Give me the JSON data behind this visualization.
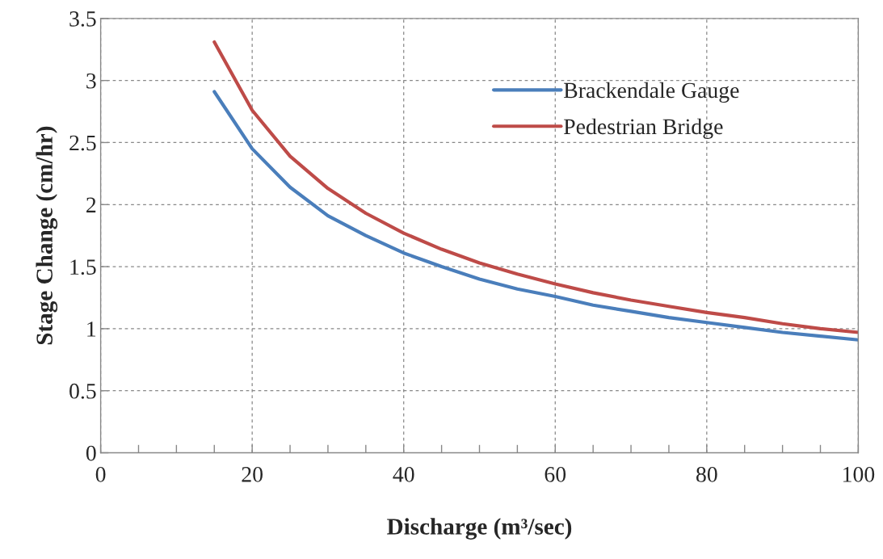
{
  "chart_data": {
    "type": "line",
    "xlabel": "Discharge (m³/sec)",
    "ylabel": "Stage Change (cm/hr)",
    "x": [
      15,
      20,
      25,
      30,
      35,
      40,
      45,
      50,
      55,
      60,
      65,
      70,
      75,
      80,
      85,
      90,
      95,
      100
    ],
    "series": [
      {
        "name": "Brackendale Gauge",
        "color": "#4a7ebb",
        "values": [
          2.91,
          2.45,
          2.14,
          1.91,
          1.75,
          1.61,
          1.5,
          1.4,
          1.32,
          1.26,
          1.19,
          1.14,
          1.09,
          1.05,
          1.01,
          0.97,
          0.94,
          0.91
        ]
      },
      {
        "name": "Pedestrian Bridge",
        "color": "#be4b48",
        "values": [
          3.31,
          2.76,
          2.39,
          2.13,
          1.93,
          1.77,
          1.64,
          1.53,
          1.44,
          1.36,
          1.29,
          1.23,
          1.18,
          1.13,
          1.09,
          1.04,
          1.0,
          0.97
        ]
      }
    ],
    "xlim": [
      0,
      100
    ],
    "ylim": [
      0,
      3.5
    ],
    "xticks": [
      0,
      {
        "value": 5,
        "label": null
      },
      {
        "value": 10,
        "label": null
      },
      {
        "value": 15,
        "label": null
      },
      20,
      {
        "value": 25,
        "label": null
      },
      {
        "value": 30,
        "label": null
      },
      {
        "value": 35,
        "label": null
      },
      40,
      {
        "value": 45,
        "label": null
      },
      {
        "value": 50,
        "label": null
      },
      {
        "value": 55,
        "label": null
      },
      60,
      {
        "value": 65,
        "label": null
      },
      {
        "value": 70,
        "label": null
      },
      {
        "value": 75,
        "label": null
      },
      80,
      {
        "value": 85,
        "label": null
      },
      {
        "value": 90,
        "label": null
      },
      {
        "value": 95,
        "label": null
      },
      100
    ],
    "yticks": [
      0,
      0.5,
      1,
      1.5,
      2,
      2.5,
      3,
      3.5
    ],
    "grid": true,
    "legend": "top right",
    "marker": "none",
    "line_style": "solid"
  }
}
